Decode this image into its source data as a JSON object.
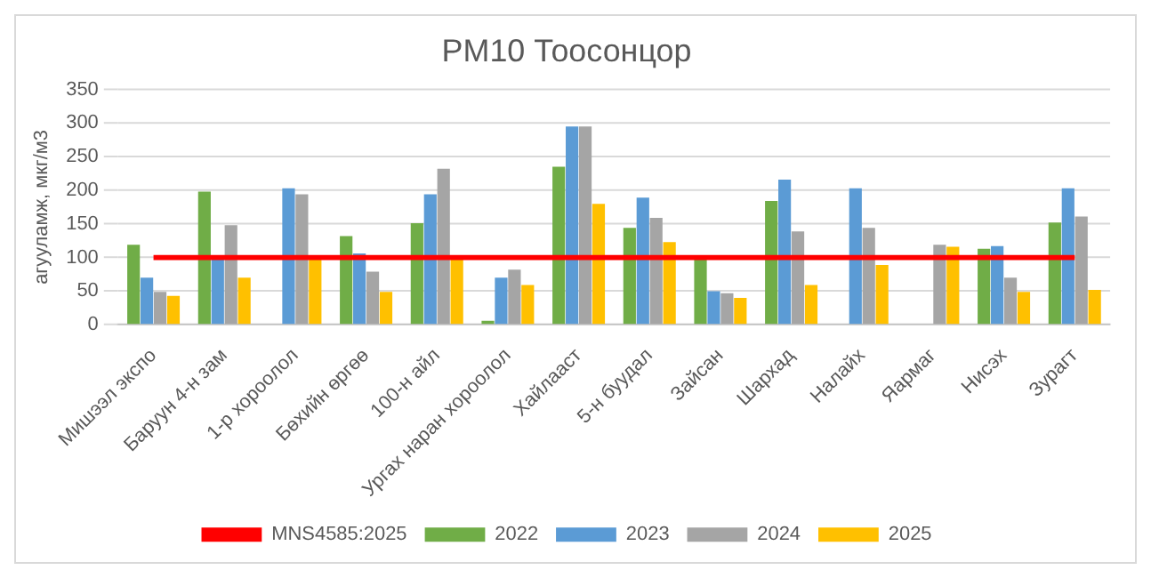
{
  "chart_data": {
    "type": "bar",
    "title": "PM10 Тоосонцор",
    "ylabel": "агууламж, мкг/м3",
    "categories": [
      "Мишээл экспо",
      "Баруун 4-н зам",
      "1-р хороолол",
      "Бөхийн өргөө",
      "100-н айл",
      "Ургах наран хороолол",
      "Хайлааст",
      "5-н буудал",
      "Зайсан",
      "Шархад",
      "Налайх",
      "Яармаг",
      "Нисэх",
      "Зурагт"
    ],
    "series": [
      {
        "name": "2022",
        "color": "#70ad47",
        "values": [
          119,
          198,
          null,
          132,
          151,
          6,
          235,
          144,
          99,
          184,
          null,
          null,
          113,
          152
        ]
      },
      {
        "name": "2023",
        "color": "#5b9bd5",
        "values": [
          70,
          100,
          203,
          106,
          194,
          70,
          295,
          189,
          50,
          216,
          203,
          null,
          117,
          203
        ]
      },
      {
        "name": "2024",
        "color": "#a5a5a5",
        "values": [
          49,
          148,
          194,
          79,
          232,
          82,
          295,
          159,
          47,
          139,
          144,
          119,
          70,
          161
        ]
      },
      {
        "name": "2025",
        "color": "#ffc000",
        "values": [
          43,
          70,
          99,
          49,
          99,
          59,
          180,
          123,
          40,
          59,
          89,
          116,
          49,
          52
        ]
      },
      {
        "name": "MNS4585:2025",
        "type": "line",
        "color": "#ff0000",
        "values": [
          100,
          100,
          100,
          100,
          100,
          100,
          100,
          100,
          100,
          100,
          100,
          100,
          100,
          100
        ]
      }
    ],
    "marker": "none",
    "ylim": [
      0,
      350
    ],
    "yticks": [
      0,
      50,
      100,
      150,
      200,
      250,
      300,
      350
    ],
    "grid": "y",
    "legend": "bottom"
  }
}
